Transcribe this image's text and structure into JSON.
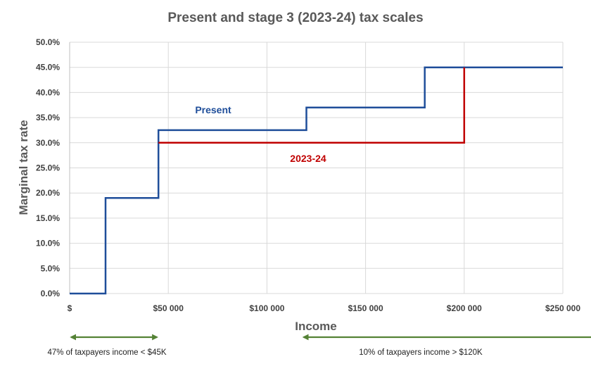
{
  "chart_data": {
    "type": "line",
    "step": true,
    "title": "Present and stage 3 (2023-24) tax scales",
    "xlabel": "Income",
    "ylabel": "Marginal tax rate",
    "xlim": [
      0,
      250000
    ],
    "ylim": [
      0,
      0.5
    ],
    "x_ticks": [
      0,
      50000,
      100000,
      150000,
      200000,
      250000
    ],
    "x_tick_labels": [
      "$",
      "$50 000",
      "$100 000",
      "$150 000",
      "$200 000",
      "$250 000"
    ],
    "y_ticks": [
      0,
      0.05,
      0.1,
      0.15,
      0.2,
      0.25,
      0.3,
      0.35,
      0.4,
      0.45,
      0.5
    ],
    "y_tick_labels": [
      "0.0%",
      "5.0%",
      "10.0%",
      "15.0%",
      "20.0%",
      "25.0%",
      "30.0%",
      "35.0%",
      "40.0%",
      "45.0%",
      "50.0%"
    ],
    "grid": true,
    "series": [
      {
        "name": "Present",
        "color": "#1f4e9a",
        "points": [
          [
            0,
            0
          ],
          [
            18200,
            0
          ],
          [
            18200,
            0.19
          ],
          [
            45000,
            0.19
          ],
          [
            45000,
            0.325
          ],
          [
            120000,
            0.325
          ],
          [
            120000,
            0.37
          ],
          [
            180000,
            0.37
          ],
          [
            180000,
            0.45
          ],
          [
            250000,
            0.45
          ]
        ]
      },
      {
        "name": "2023-24",
        "color": "#c00000",
        "points": [
          [
            45000,
            0.3
          ],
          [
            200000,
            0.3
          ],
          [
            200000,
            0.45
          ]
        ]
      }
    ],
    "annotations": [
      {
        "text": "47% of taxpayers income < $45K",
        "color": "#548235",
        "arrow_from": 0,
        "arrow_to": 45000,
        "arrow_style": "double"
      },
      {
        "text": "10% of taxpayers income > $120K",
        "color": "#548235",
        "arrow_from": 120000,
        "arrow_to": 250000,
        "arrow_style": "left"
      }
    ]
  }
}
